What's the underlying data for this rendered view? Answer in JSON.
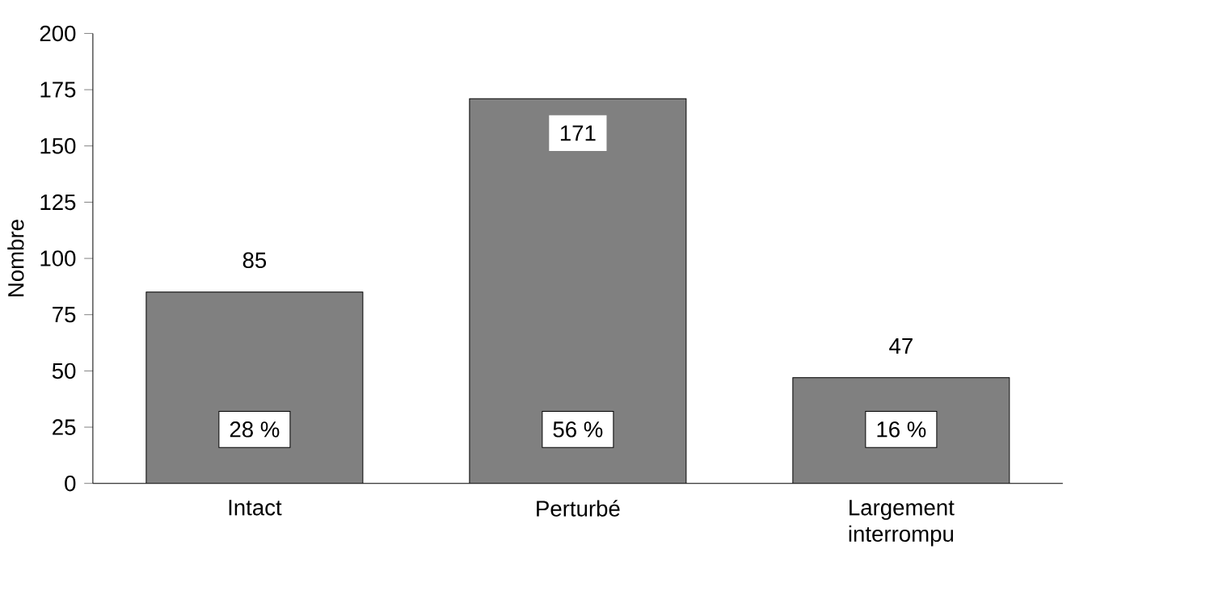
{
  "chart_data": {
    "type": "bar",
    "ylabel": "Nombre",
    "categories": [
      "Intact",
      "Perturbé",
      "Largement interrompu"
    ],
    "values": [
      85,
      171,
      47
    ],
    "color": "#808080",
    "ylim": [
      0,
      200
    ],
    "yticks": [
      0,
      25,
      50,
      75,
      100,
      125,
      150,
      175,
      200
    ],
    "data_labels": true,
    "grid": false,
    "annotations": [
      "28 %",
      "56 %",
      "16 %"
    ]
  }
}
